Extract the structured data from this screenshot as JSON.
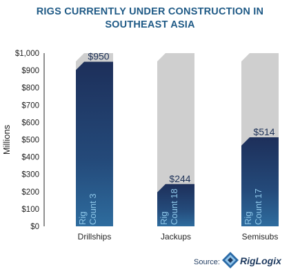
{
  "chart_data": {
    "type": "bar",
    "title_lines": [
      "RIGS CURRENTLY UNDER CONSTRUCTION IN",
      "SOUTHEAST ASIA"
    ],
    "ylabel": "Millions",
    "ylim": [
      0,
      1000
    ],
    "yticks": [
      "$0",
      "$100",
      "$200",
      "$300",
      "$400",
      "$500",
      "$600",
      "$700",
      "$800",
      "$900",
      "$1,000"
    ],
    "categories": [
      "Drillships",
      "Jackups",
      "Semisubs"
    ],
    "values": [
      950,
      244,
      514
    ],
    "value_labels": [
      "$950",
      "$244",
      "$514"
    ],
    "rig_labels": [
      {
        "line1": "Rig",
        "line2": "Count 3"
      },
      {
        "line1": "Rig",
        "line2": "Count 18"
      },
      {
        "line1": "Rig",
        "line2": "Count 17"
      }
    ],
    "background_max": 1000,
    "colors": {
      "bar_top": "#1d2f5a",
      "bar_bottom": "#2e6c9e",
      "background_bar": "#cfcfcf",
      "title": "#1f5a86"
    }
  },
  "source": {
    "label": "Source:",
    "brand": "RigLogix"
  }
}
